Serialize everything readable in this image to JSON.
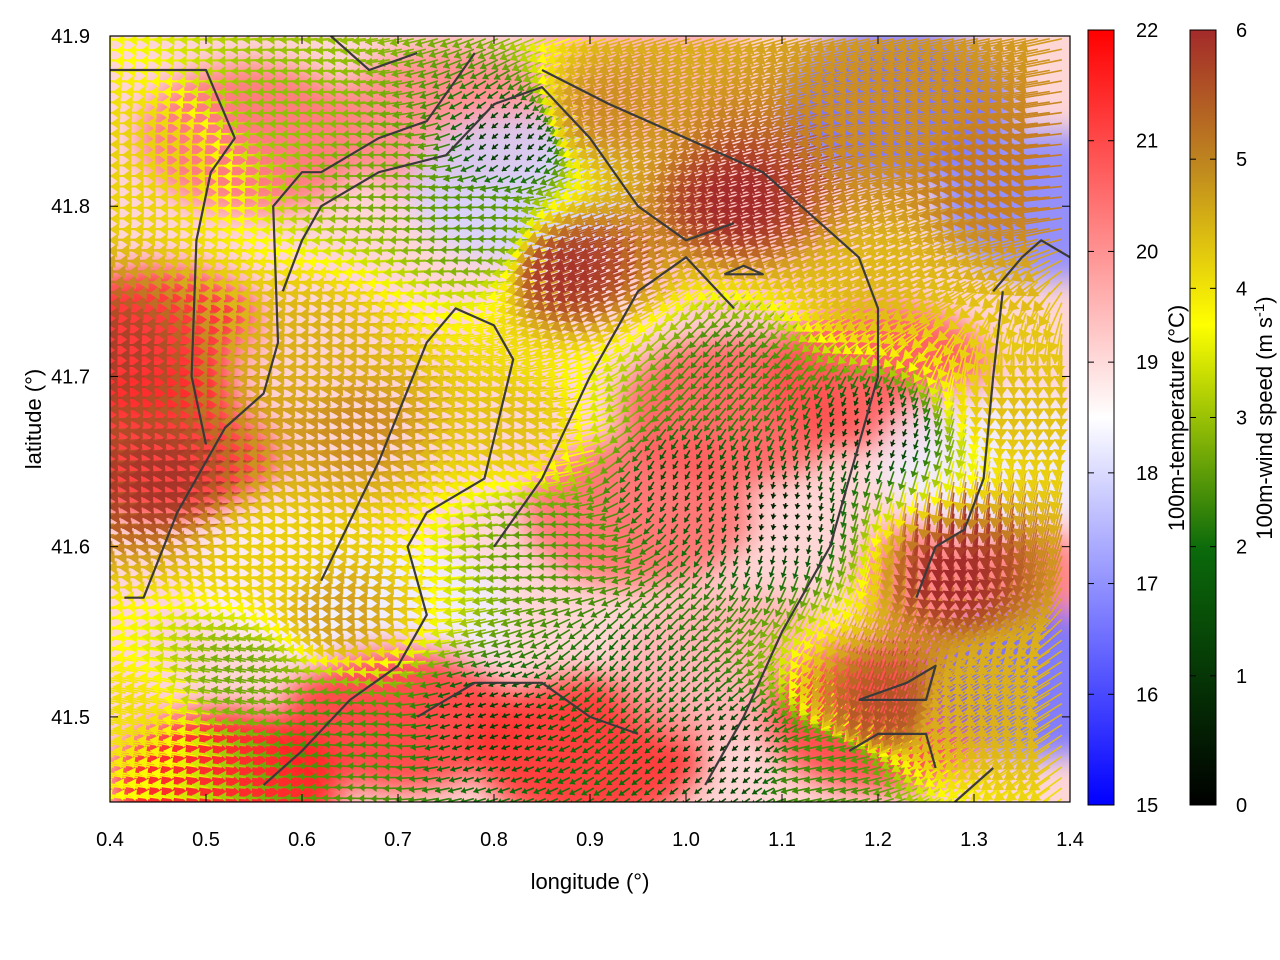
{
  "chart_data": {
    "type": "heatmap",
    "title": "",
    "xlabel": "longitude (°)",
    "ylabel": "latitude (°)",
    "xlim": [
      0.4,
      1.4
    ],
    "ylim": [
      41.45,
      41.9
    ],
    "x_ticks": [
      0.4,
      0.5,
      0.6,
      0.7,
      0.8,
      0.9,
      1.0,
      1.1,
      1.2,
      1.3,
      1.4
    ],
    "x_tick_labels": [
      "0.4",
      "0.5",
      "0.6",
      "0.7",
      "0.8",
      "0.9",
      "1.0",
      "1.1",
      "1.2",
      "1.3",
      "1.4"
    ],
    "y_ticks": [
      41.5,
      41.6,
      41.7,
      41.8,
      41.9
    ],
    "y_tick_labels": [
      "41.5",
      "41.6",
      "41.7",
      "41.8",
      "41.9"
    ],
    "grid": false,
    "temperature_colorbar": {
      "label": "100m-temperature (°C)",
      "range": [
        15,
        22
      ],
      "ticks": [
        15,
        16,
        17,
        18,
        19,
        20,
        21,
        22
      ],
      "tick_labels": [
        "15",
        "16",
        "17",
        "18",
        "19",
        "20",
        "21",
        "22"
      ],
      "colors": [
        "#0000ff",
        "#ffffff",
        "#ff0000"
      ]
    },
    "wind_colorbar": {
      "label": "100m-wind speed (m s",
      "label_sup": "-1",
      "label_end": ")",
      "range": [
        0,
        6
      ],
      "ticks": [
        0,
        1,
        2,
        3,
        4,
        5,
        6
      ],
      "tick_labels": [
        "0",
        "1",
        "2",
        "3",
        "4",
        "5",
        "6"
      ],
      "colors": [
        "#000000",
        "#0b6a0b",
        "#ffff00",
        "#c08a1e",
        "#a32a2a"
      ]
    },
    "temperature_regions": [
      {
        "lon": 0.45,
        "lat": 41.72,
        "temp": 21.6
      },
      {
        "lon": 0.46,
        "lat": 41.66,
        "temp": 21.4
      },
      {
        "lon": 0.55,
        "lat": 41.84,
        "temp": 20.5
      },
      {
        "lon": 0.75,
        "lat": 41.85,
        "temp": 20.2
      },
      {
        "lon": 0.83,
        "lat": 41.81,
        "temp": 17.9
      },
      {
        "lon": 0.95,
        "lat": 41.88,
        "temp": 19.6
      },
      {
        "lon": 1.22,
        "lat": 41.86,
        "temp": 16.4
      },
      {
        "lon": 1.38,
        "lat": 41.8,
        "temp": 16.8
      },
      {
        "lon": 1.05,
        "lat": 41.78,
        "temp": 19.4
      },
      {
        "lon": 0.65,
        "lat": 41.7,
        "temp": 19.1
      },
      {
        "lon": 0.6,
        "lat": 41.58,
        "temp": 18.7
      },
      {
        "lon": 0.7,
        "lat": 41.56,
        "temp": 18.3
      },
      {
        "lon": 0.95,
        "lat": 41.62,
        "temp": 20.6
      },
      {
        "lon": 1.05,
        "lat": 41.68,
        "temp": 20.8
      },
      {
        "lon": 1.2,
        "lat": 41.7,
        "temp": 20.9
      },
      {
        "lon": 0.7,
        "lat": 41.5,
        "temp": 21.3
      },
      {
        "lon": 0.9,
        "lat": 41.48,
        "temp": 21.5
      },
      {
        "lon": 1.05,
        "lat": 41.53,
        "temp": 19.6
      },
      {
        "lon": 1.2,
        "lat": 41.5,
        "temp": 21.2
      },
      {
        "lon": 1.3,
        "lat": 41.58,
        "temp": 20.4
      },
      {
        "lon": 1.37,
        "lat": 41.52,
        "temp": 16.5
      },
      {
        "lon": 1.32,
        "lat": 41.65,
        "temp": 18.3
      },
      {
        "lon": 0.52,
        "lat": 41.46,
        "temp": 21.8
      }
    ],
    "wind_regions": [
      {
        "lon": 0.45,
        "lat": 41.71,
        "speed": 5.8,
        "dir": 180
      },
      {
        "lon": 0.5,
        "lat": 41.64,
        "speed": 5.9,
        "dir": 185
      },
      {
        "lon": 0.48,
        "lat": 41.83,
        "speed": 4.2,
        "dir": 180
      },
      {
        "lon": 0.6,
        "lat": 41.86,
        "speed": 2.6,
        "dir": 182
      },
      {
        "lon": 0.7,
        "lat": 41.82,
        "speed": 2.3,
        "dir": 180
      },
      {
        "lon": 0.82,
        "lat": 41.84,
        "speed": 0.6,
        "dir": 220
      },
      {
        "lon": 0.8,
        "lat": 41.79,
        "speed": 2.0,
        "dir": 178
      },
      {
        "lon": 0.95,
        "lat": 41.86,
        "speed": 5.0,
        "dir": 195
      },
      {
        "lon": 0.92,
        "lat": 41.77,
        "speed": 5.9,
        "dir": 200
      },
      {
        "lon": 1.1,
        "lat": 41.81,
        "speed": 6.0,
        "dir": 195
      },
      {
        "lon": 1.25,
        "lat": 41.85,
        "speed": 5.0,
        "dir": 190
      },
      {
        "lon": 1.35,
        "lat": 41.82,
        "speed": 5.2,
        "dir": 185
      },
      {
        "lon": 1.22,
        "lat": 41.76,
        "speed": 4.5,
        "dir": 200
      },
      {
        "lon": 0.65,
        "lat": 41.72,
        "speed": 4.6,
        "dir": 182
      },
      {
        "lon": 0.7,
        "lat": 41.67,
        "speed": 5.0,
        "dir": 185
      },
      {
        "lon": 0.6,
        "lat": 41.6,
        "speed": 4.2,
        "dir": 183
      },
      {
        "lon": 0.68,
        "lat": 41.56,
        "speed": 4.8,
        "dir": 180
      },
      {
        "lon": 0.85,
        "lat": 41.67,
        "speed": 4.4,
        "dir": 184
      },
      {
        "lon": 0.88,
        "lat": 41.6,
        "speed": 2.0,
        "dir": 180
      },
      {
        "lon": 1.0,
        "lat": 41.64,
        "speed": 0.8,
        "dir": 240
      },
      {
        "lon": 1.1,
        "lat": 41.62,
        "speed": 0.4,
        "dir": 260
      },
      {
        "lon": 1.2,
        "lat": 41.67,
        "speed": 0.5,
        "dir": 250
      },
      {
        "lon": 1.05,
        "lat": 41.71,
        "speed": 1.6,
        "dir": 230
      },
      {
        "lon": 1.35,
        "lat": 41.7,
        "speed": 4.4,
        "dir": 270
      },
      {
        "lon": 1.28,
        "lat": 41.61,
        "speed": 6.0,
        "dir": 265
      },
      {
        "lon": 1.22,
        "lat": 41.53,
        "speed": 5.6,
        "dir": 250
      },
      {
        "lon": 1.33,
        "lat": 41.52,
        "speed": 4.6,
        "dir": 210
      },
      {
        "lon": 0.55,
        "lat": 41.52,
        "speed": 2.3,
        "dir": 170
      },
      {
        "lon": 0.65,
        "lat": 41.49,
        "speed": 1.8,
        "dir": 175
      },
      {
        "lon": 0.8,
        "lat": 41.5,
        "speed": 0.7,
        "dir": 200
      },
      {
        "lon": 0.95,
        "lat": 41.53,
        "speed": 1.2,
        "dir": 230
      },
      {
        "lon": 1.05,
        "lat": 41.48,
        "speed": 0.6,
        "dir": 220
      },
      {
        "lon": 1.15,
        "lat": 41.47,
        "speed": 1.8,
        "dir": 190
      },
      {
        "lon": 0.45,
        "lat": 41.5,
        "speed": 4.0,
        "dir": 170
      }
    ],
    "contours": [
      [
        [
          0.415,
          41.57
        ],
        [
          0.435,
          41.57
        ],
        [
          0.47,
          41.62
        ],
        [
          0.52,
          41.67
        ],
        [
          0.56,
          41.69
        ],
        [
          0.575,
          41.72
        ],
        [
          0.57,
          41.8
        ],
        [
          0.6,
          41.82
        ],
        [
          0.62,
          41.82
        ],
        [
          0.68,
          41.84
        ],
        [
          0.73,
          41.85
        ],
        [
          0.78,
          41.89
        ]
      ],
      [
        [
          0.5,
          41.66
        ],
        [
          0.485,
          41.7
        ],
        [
          0.49,
          41.78
        ],
        [
          0.505,
          41.82
        ],
        [
          0.53,
          41.84
        ],
        [
          0.5,
          41.88
        ],
        [
          0.44,
          41.88
        ],
        [
          0.4,
          41.88
        ]
      ],
      [
        [
          0.58,
          41.75
        ],
        [
          0.6,
          41.78
        ],
        [
          0.62,
          41.8
        ],
        [
          0.68,
          41.82
        ],
        [
          0.75,
          41.83
        ],
        [
          0.8,
          41.86
        ],
        [
          0.85,
          41.87
        ],
        [
          0.9,
          41.84
        ],
        [
          0.95,
          41.8
        ],
        [
          1.0,
          41.78
        ],
        [
          1.05,
          41.79
        ]
      ],
      [
        [
          0.63,
          41.9
        ],
        [
          0.67,
          41.88
        ],
        [
          0.72,
          41.89
        ]
      ],
      [
        [
          0.85,
          41.88
        ],
        [
          0.92,
          41.86
        ],
        [
          1.0,
          41.84
        ],
        [
          1.08,
          41.82
        ],
        [
          1.14,
          41.79
        ],
        [
          1.18,
          41.77
        ],
        [
          1.2,
          41.74
        ],
        [
          1.2,
          41.7
        ],
        [
          1.18,
          41.66
        ],
        [
          1.15,
          41.6
        ],
        [
          1.1,
          41.55
        ],
        [
          1.06,
          41.5
        ],
        [
          1.02,
          41.46
        ]
      ],
      [
        [
          1.04,
          41.76
        ],
        [
          1.08,
          41.76
        ],
        [
          1.06,
          41.765
        ],
        [
          1.04,
          41.76
        ]
      ],
      [
        [
          0.62,
          41.58
        ],
        [
          0.68,
          41.65
        ],
        [
          0.73,
          41.72
        ],
        [
          0.76,
          41.74
        ],
        [
          0.8,
          41.73
        ],
        [
          0.82,
          41.71
        ],
        [
          0.79,
          41.64
        ],
        [
          0.73,
          41.62
        ],
        [
          0.71,
          41.6
        ],
        [
          0.73,
          41.56
        ],
        [
          0.7,
          41.53
        ],
        [
          0.65,
          41.51
        ],
        [
          0.6,
          41.48
        ],
        [
          0.56,
          41.46
        ]
      ],
      [
        [
          0.72,
          41.5
        ],
        [
          0.78,
          41.52
        ],
        [
          0.85,
          41.52
        ],
        [
          0.9,
          41.5
        ],
        [
          0.95,
          41.49
        ]
      ],
      [
        [
          0.8,
          41.6
        ],
        [
          0.85,
          41.64
        ],
        [
          0.9,
          41.7
        ],
        [
          0.95,
          41.75
        ],
        [
          1.0,
          41.77
        ],
        [
          1.05,
          41.74
        ]
      ],
      [
        [
          1.32,
          41.75
        ],
        [
          1.35,
          41.77
        ],
        [
          1.37,
          41.78
        ],
        [
          1.4,
          41.77
        ]
      ],
      [
        [
          1.33,
          41.75
        ],
        [
          1.32,
          41.7
        ],
        [
          1.31,
          41.64
        ],
        [
          1.29,
          41.61
        ],
        [
          1.26,
          41.6
        ],
        [
          1.24,
          41.57
        ]
      ],
      [
        [
          1.17,
          41.48
        ],
        [
          1.2,
          41.49
        ],
        [
          1.25,
          41.49
        ],
        [
          1.26,
          41.47
        ]
      ],
      [
        [
          1.18,
          41.51
        ],
        [
          1.23,
          41.52
        ],
        [
          1.26,
          41.53
        ],
        [
          1.25,
          41.51
        ],
        [
          1.18,
          41.51
        ]
      ],
      [
        [
          1.28,
          41.45
        ],
        [
          1.3,
          41.46
        ],
        [
          1.32,
          41.47
        ]
      ]
    ]
  }
}
